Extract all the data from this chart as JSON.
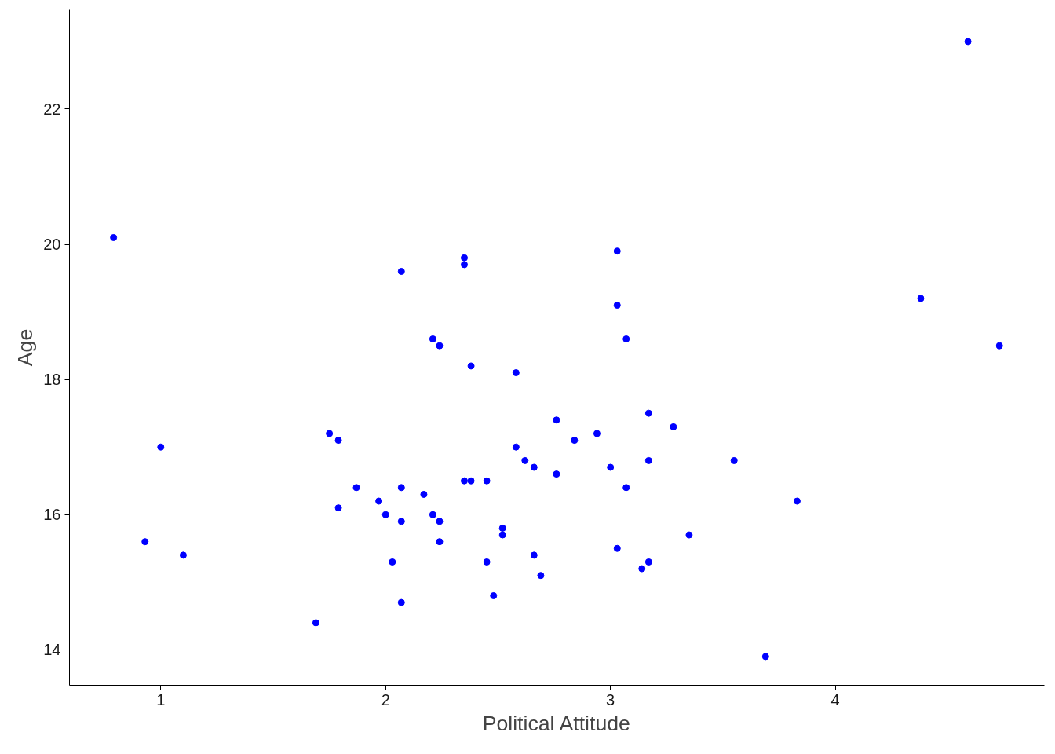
{
  "chart_data": {
    "type": "scatter",
    "xlabel": "Political Attitude",
    "ylabel": "Age",
    "x": [
      0.79,
      0.93,
      1.0,
      1.1,
      1.69,
      1.75,
      1.79,
      1.79,
      1.87,
      1.97,
      2.0,
      2.03,
      2.07,
      2.07,
      2.07,
      2.07,
      2.17,
      2.21,
      2.21,
      2.24,
      2.24,
      2.24,
      2.35,
      2.35,
      2.35,
      2.38,
      2.38,
      2.45,
      2.45,
      2.48,
      2.52,
      2.52,
      2.58,
      2.58,
      2.62,
      2.66,
      2.66,
      2.69,
      2.76,
      2.76,
      2.84,
      2.94,
      3.0,
      3.03,
      3.03,
      3.03,
      3.07,
      3.07,
      3.14,
      3.17,
      3.17,
      3.17,
      3.28,
      3.35,
      3.55,
      3.69,
      3.83,
      4.38,
      4.59,
      4.73
    ],
    "series": [
      {
        "color": "#0000ff",
        "values": [
          20.1,
          15.6,
          17.0,
          15.4,
          14.4,
          17.2,
          17.1,
          16.1,
          16.4,
          16.2,
          16.0,
          15.3,
          19.6,
          16.4,
          15.9,
          14.7,
          16.3,
          18.6,
          16.0,
          18.5,
          15.9,
          15.6,
          19.8,
          19.7,
          16.5,
          18.2,
          16.5,
          16.5,
          15.3,
          14.8,
          15.8,
          15.7,
          18.1,
          17.0,
          16.8,
          16.7,
          15.4,
          15.1,
          17.4,
          16.6,
          17.1,
          17.2,
          16.7,
          19.9,
          19.1,
          15.5,
          18.6,
          16.4,
          15.2,
          17.5,
          16.8,
          15.3,
          17.3,
          15.7,
          16.8,
          13.9,
          16.2,
          19.2,
          23.0,
          18.5
        ]
      }
    ],
    "xlim": [
      0.594,
      4.93
    ],
    "ylim": [
      13.475,
      23.47
    ],
    "xticks": [
      1,
      2,
      3,
      4
    ],
    "yticks": [
      14,
      16,
      18,
      20,
      22
    ],
    "grid": false,
    "marker": "circle"
  }
}
